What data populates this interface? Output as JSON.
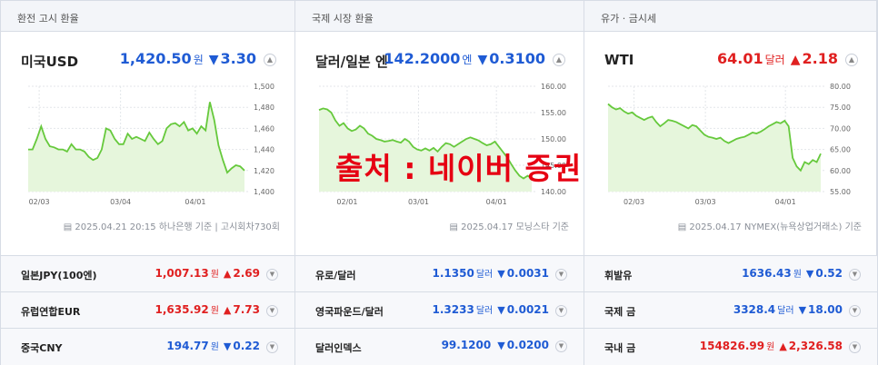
{
  "panels": [
    {
      "header": "환전 고시 환율",
      "name": "미국USD",
      "value": "1,420.50",
      "unit": "원",
      "direction": "down",
      "arrow": "▼",
      "change": "3.30",
      "source": "2025.04.21 20:15 하나은행 기준 | 고시회차730회"
    },
    {
      "header": "국제 시장 환율",
      "name": "달러/일본 엔",
      "value": "142.2000",
      "unit": "엔",
      "direction": "down",
      "arrow": "▼",
      "change": "0.3100",
      "source": "2025.04.17 모닝스타 기준"
    },
    {
      "header": "유가 · 금시세",
      "name": "WTI",
      "value": "64.01",
      "unit": "달러",
      "direction": "up",
      "arrow": "▲",
      "change": "2.18",
      "source": "2025.04.17 NYMEX(뉴욕상업거래소) 기준"
    }
  ],
  "chart_data": [
    {
      "type": "area",
      "x_ticks": [
        "02/03",
        "03/04",
        "04/01"
      ],
      "y_ticks": [
        "1,500",
        "1,480",
        "1,460",
        "1,440",
        "1,420",
        "1,400"
      ],
      "ylim": [
        1400,
        1500
      ],
      "series": [
        {
          "values": [
            1440,
            1440,
            1450,
            1462,
            1450,
            1443,
            1442,
            1440,
            1440,
            1438,
            1445,
            1440,
            1440,
            1438,
            1433,
            1430,
            1432,
            1440,
            1460,
            1458,
            1450,
            1445,
            1445,
            1455,
            1450,
            1452,
            1450,
            1448,
            1456,
            1450,
            1445,
            1448,
            1460,
            1464,
            1465,
            1462,
            1466,
            1458,
            1460,
            1455,
            1462,
            1458,
            1485,
            1468,
            1444,
            1430,
            1418,
            1422,
            1425,
            1424,
            1420
          ]
        }
      ]
    },
    {
      "type": "area",
      "x_ticks": [
        "02/01",
        "03/01",
        "04/01"
      ],
      "y_ticks": [
        "160.00",
        "155.00",
        "150.00",
        "145.00",
        "140.00"
      ],
      "ylim": [
        140,
        160
      ],
      "series": [
        {
          "values": [
            155.5,
            155.8,
            155.6,
            155.0,
            153.5,
            152.5,
            153.0,
            152.0,
            151.5,
            151.8,
            152.5,
            152.0,
            151.0,
            150.6,
            150.0,
            149.8,
            149.5,
            149.6,
            149.8,
            149.5,
            149.3,
            150.0,
            149.5,
            148.5,
            148.0,
            147.8,
            148.2,
            147.8,
            148.3,
            147.6,
            148.5,
            149.2,
            149.0,
            148.5,
            149.0,
            149.5,
            150.0,
            150.3,
            150.0,
            149.7,
            149.2,
            148.8,
            149.0,
            149.5,
            148.5,
            147.5,
            146.5,
            145.2,
            144.0,
            143.0,
            142.5,
            143.0,
            142.5
          ]
        }
      ]
    },
    {
      "type": "area",
      "x_ticks": [
        "02/03",
        "03/03",
        "04/01"
      ],
      "y_ticks": [
        "80.00",
        "75.00",
        "70.00",
        "65.00",
        "60.00",
        "55.00"
      ],
      "ylim": [
        55,
        80
      ],
      "series": [
        {
          "values": [
            75.8,
            75.0,
            74.5,
            74.8,
            74.0,
            73.5,
            73.8,
            73.0,
            72.5,
            72.0,
            72.5,
            72.8,
            71.5,
            70.5,
            71.2,
            72.0,
            71.8,
            71.5,
            71.0,
            70.5,
            70.0,
            70.8,
            70.5,
            69.5,
            68.5,
            68.0,
            67.8,
            67.5,
            67.8,
            67.0,
            66.5,
            67.0,
            67.5,
            67.8,
            68.0,
            68.5,
            69.0,
            68.8,
            69.2,
            69.8,
            70.5,
            71.0,
            71.5,
            71.2,
            71.8,
            70.5,
            63.0,
            61.0,
            60.0,
            62.0,
            61.5,
            62.5,
            62.0,
            64.0
          ]
        }
      ]
    }
  ],
  "watermark": "출처 : 네이버 증권",
  "rows": [
    [
      {
        "name": "일본JPY(100엔)",
        "value": "1,007.13",
        "unit": "원",
        "direction": "up",
        "arrow": "▲",
        "change": "2.69"
      },
      {
        "name": "유로/달러",
        "value": "1.1350",
        "unit": "달러",
        "direction": "down",
        "arrow": "▼",
        "change": "0.0031"
      },
      {
        "name": "휘발유",
        "value": "1636.43",
        "unit": "원",
        "direction": "down",
        "arrow": "▼",
        "change": "0.52"
      }
    ],
    [
      {
        "name": "유럽연합EUR",
        "value": "1,635.92",
        "unit": "원",
        "direction": "up",
        "arrow": "▲",
        "change": "7.73"
      },
      {
        "name": "영국파운드/달러",
        "value": "1.3233",
        "unit": "달러",
        "direction": "down",
        "arrow": "▼",
        "change": "0.0021"
      },
      {
        "name": "국제 금",
        "value": "3328.4",
        "unit": "달러",
        "direction": "down",
        "arrow": "▼",
        "change": "18.00"
      }
    ],
    [
      {
        "name": "중국CNY",
        "value": "194.77",
        "unit": "원",
        "direction": "down",
        "arrow": "▼",
        "change": "0.22"
      },
      {
        "name": "달러인덱스",
        "value": "99.1200",
        "unit": "",
        "direction": "down",
        "arrow": "▼",
        "change": "0.0200"
      },
      {
        "name": "국내 금",
        "value": "154826.99",
        "unit": "원",
        "direction": "up",
        "arrow": "▲",
        "change": "2,326.58"
      }
    ]
  ],
  "colors": {
    "up": "#e02020",
    "down": "#1f5bd4",
    "line": "#66c93c",
    "fill": "#e6f6dc"
  },
  "icons": {
    "toggle": "chevron-up-icon",
    "row_toggle": "chevron-down-icon",
    "source": "chart-doc-icon"
  }
}
